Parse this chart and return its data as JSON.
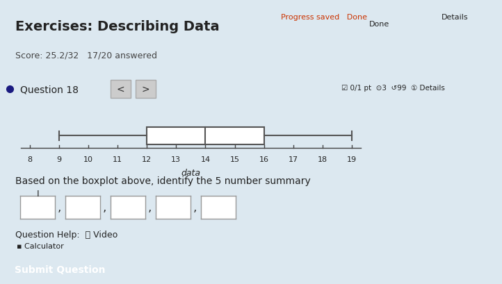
{
  "title": "Exercises: Describing Data",
  "subtitle": "Score: 25.2/32   17/20 answered",
  "question_label": "Question 18",
  "progress_text": "Progress saved   Done",
  "details_text": "0/1 pt  3  99   Details",
  "boxplot": {
    "min": 9,
    "q1": 12,
    "median": 14,
    "q3": 16,
    "max": 19
  },
  "axis_min": 8,
  "axis_max": 19,
  "xlabel": "data",
  "question_text": "Based on the boxplot above, identify the 5 number summary",
  "help_text": "Question Help:",
  "video_text": "Video",
  "calculator_text": "Calculator",
  "submit_text": "Submit Question",
  "bg_color": "#dce8f0",
  "box_color": "white",
  "box_edge_color": "#555555",
  "whisker_color": "#555555",
  "submit_btn_color": "#3a7bd5",
  "submit_text_color": "white",
  "title_color": "#222222",
  "subtitle_color": "#444444",
  "question_color": "#222222",
  "answer_box_color": "white",
  "answer_box_edge": "#999999"
}
